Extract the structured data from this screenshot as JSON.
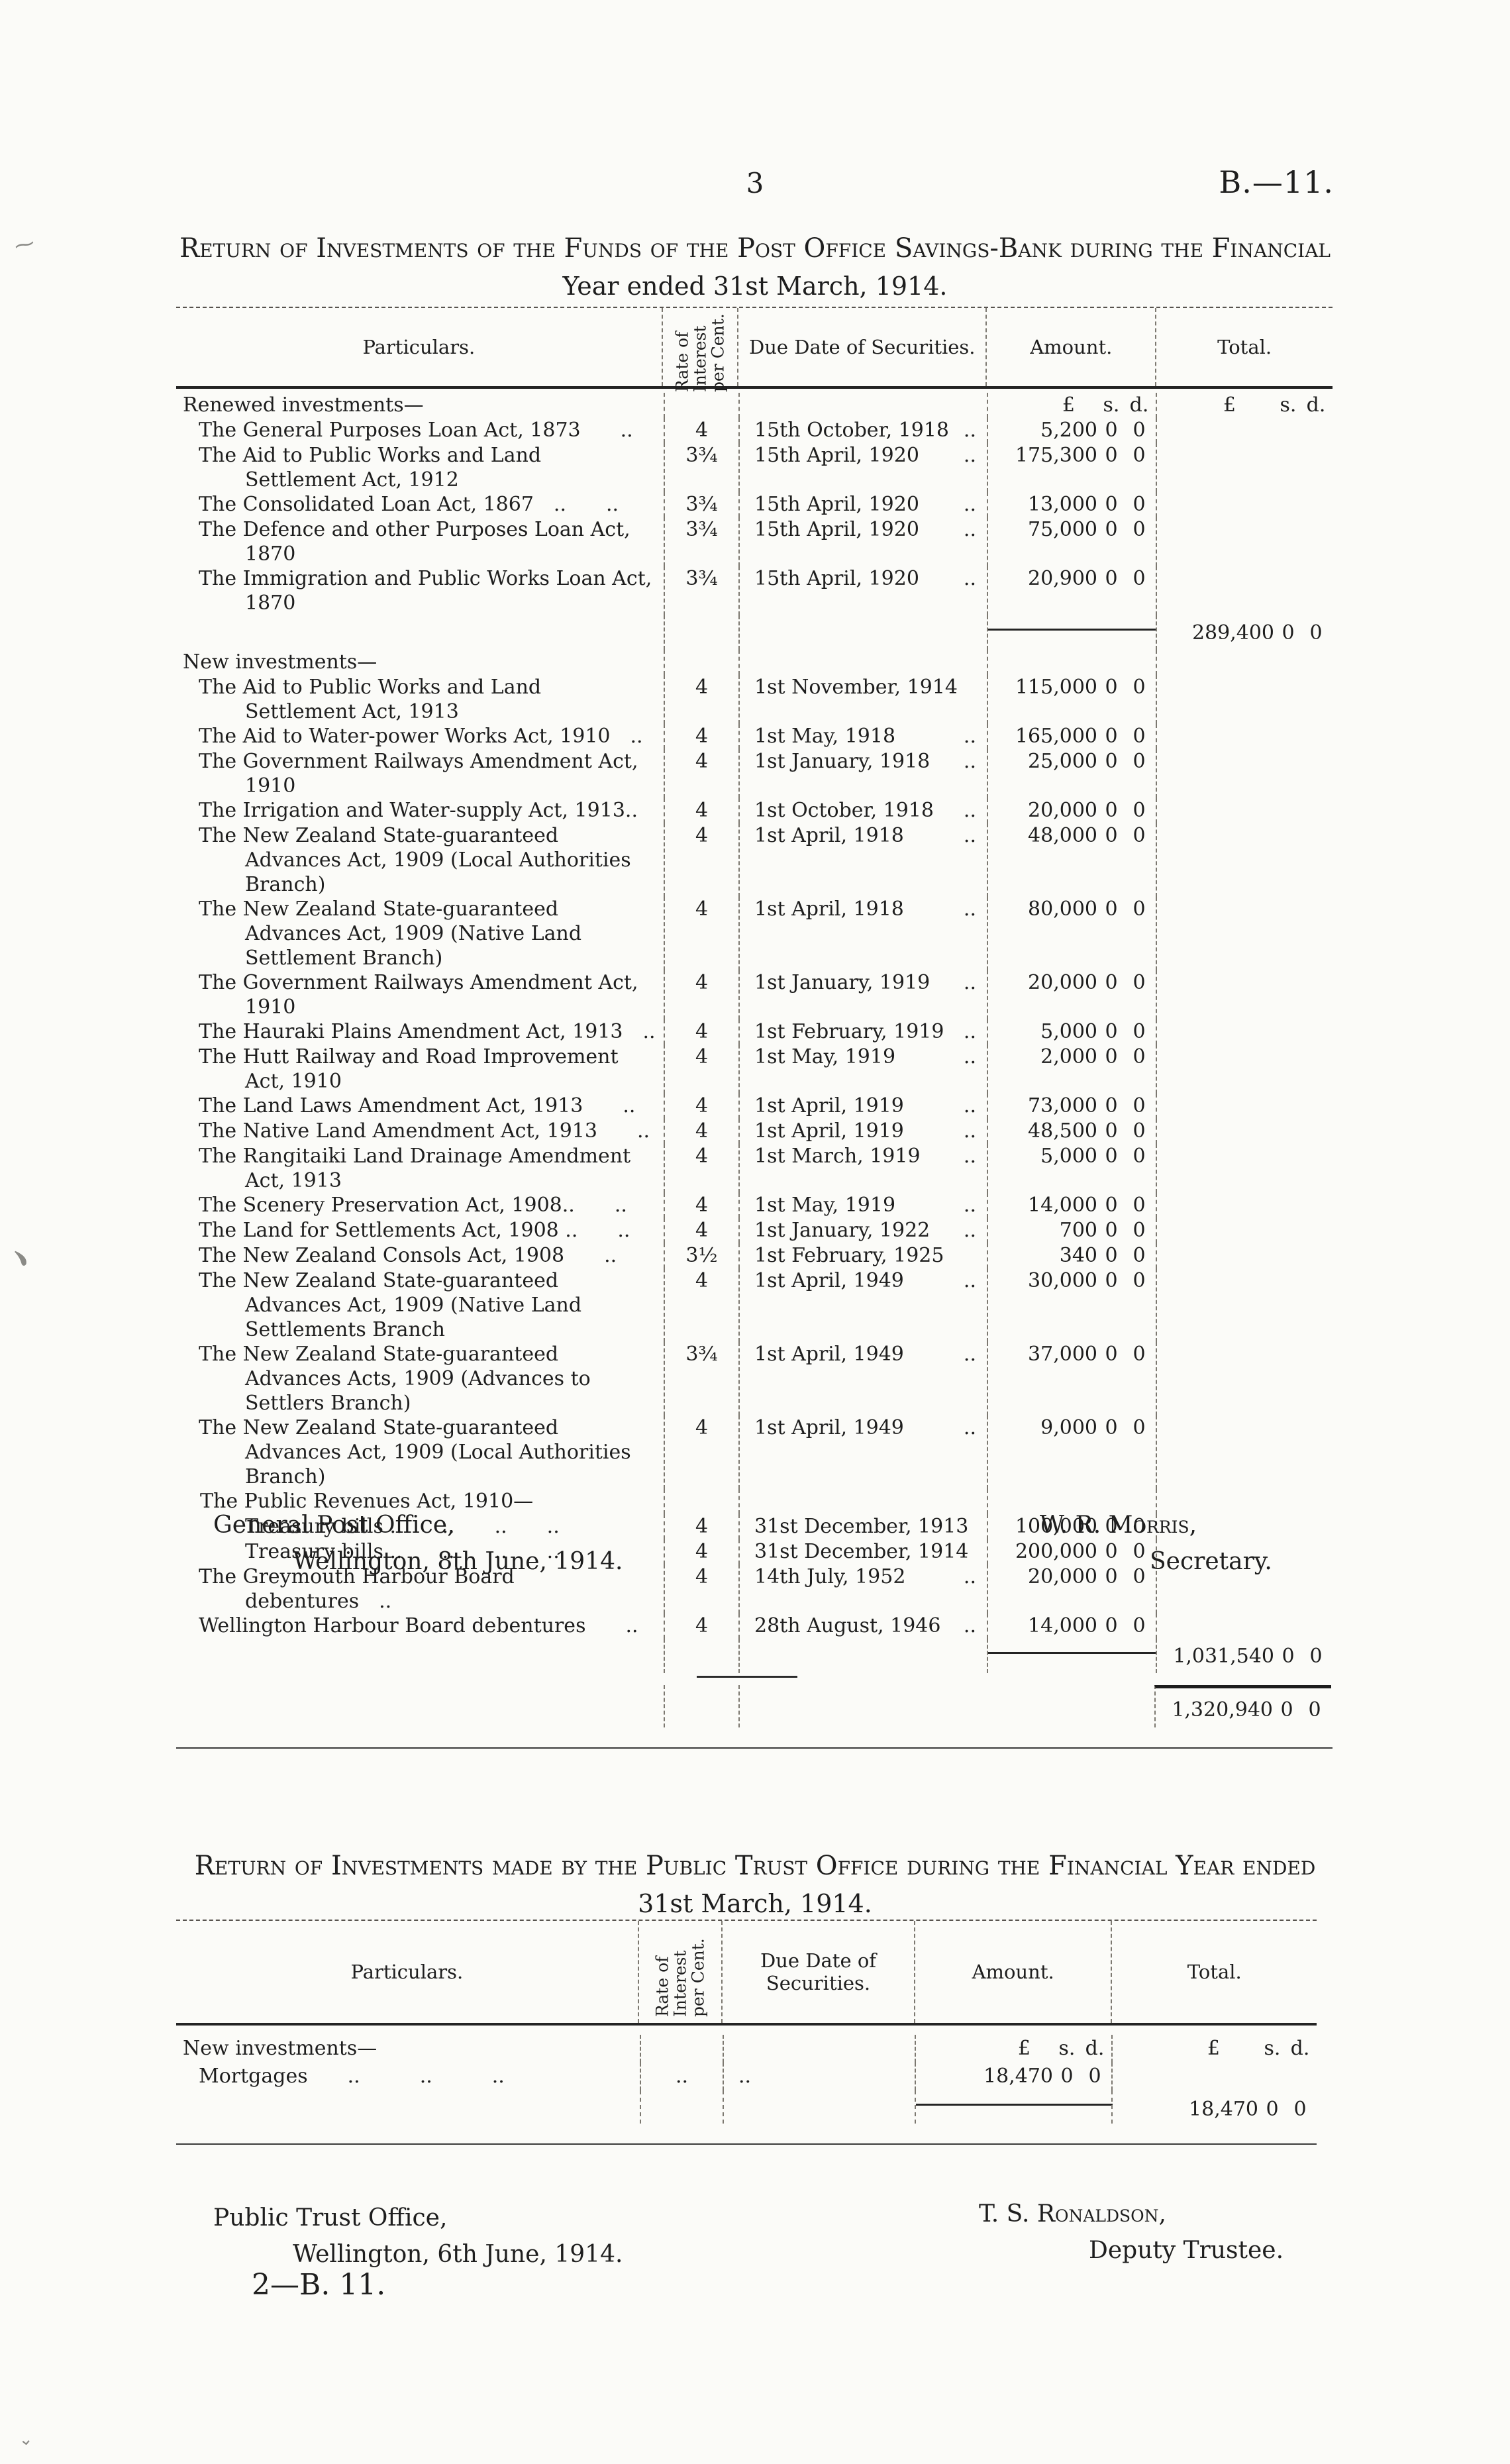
{
  "ink_color": "#1e1e1e",
  "paper_color": "#fbfbf8",
  "page": {
    "number": "3",
    "doc_ref": "B.—11.",
    "printer_mark": "2—B. 11."
  },
  "return1": {
    "title_line1": "Return of Investments of the Funds of the Post Office Savings-Bank during the Financial",
    "title_line2": "Year ended 31st March, 1914.",
    "header": {
      "particulars": "Particulars.",
      "rate": "Rate of Interest per Cent.",
      "due": "Due Date of Securities.",
      "amount": "Amount.",
      "total": "Total."
    },
    "rows": [
      {
        "type": "group",
        "particulars": "Renewed investments—",
        "amount": "£",
        "s": "s.",
        "d": "d.",
        "total": "£",
        "ts": "s.",
        "td": "d."
      },
      {
        "particulars": "The General Purposes Loan Act, 1873  ..",
        "rate": "4",
        "due": "15th October, 1918",
        "due_dots": "..",
        "amount": "5,200",
        "s": "0",
        "d": "0"
      },
      {
        "particulars": "The Aid to Public Works and Land Settlement Act, 1912",
        "rate": "3¾",
        "due": "15th April, 1920",
        "due_dots": "..",
        "amount": "175,300",
        "s": "0",
        "d": "0"
      },
      {
        "particulars": "The Consolidated Loan Act, 1867 ..  ..",
        "rate": "3¾",
        "due": "15th April, 1920",
        "due_dots": "..",
        "amount": "13,000",
        "s": "0",
        "d": "0"
      },
      {
        "particulars": "The Defence and other Purposes Loan Act, 1870",
        "rate": "3¾",
        "due": "15th April, 1920",
        "due_dots": "..",
        "amount": "75,000",
        "s": "0",
        "d": "0"
      },
      {
        "particulars": "The Immigration and Public Works Loan Act, 1870",
        "rate": "3¾",
        "due": "15th April, 1920",
        "due_dots": "..",
        "amount": "20,900",
        "s": "0",
        "d": "0"
      },
      {
        "type": "subtotal",
        "total": "289,400",
        "ts": "0",
        "td": "0"
      },
      {
        "type": "group",
        "particulars": "New investments—"
      },
      {
        "particulars": "The Aid to Public Works and Land Settlement Act, 1913",
        "rate": "4",
        "due": "1st November, 1914",
        "amount": "115,000",
        "s": "0",
        "d": "0"
      },
      {
        "particulars": "The Aid to Water-power Works Act, 1910 ..",
        "rate": "4",
        "due": "1st May, 1918",
        "due_dots": "..",
        "amount": "165,000",
        "s": "0",
        "d": "0"
      },
      {
        "particulars": "The Government Railways Amendment Act, 1910",
        "rate": "4",
        "due": "1st January, 1918",
        "due_dots": "..",
        "amount": "25,000",
        "s": "0",
        "d": "0"
      },
      {
        "particulars": "The Irrigation and Water-supply Act, 1913..",
        "rate": "4",
        "due": "1st October, 1918",
        "due_dots": "..",
        "amount": "20,000",
        "s": "0",
        "d": "0"
      },
      {
        "particulars": "The New Zealand State-guaranteed Advances Act, 1909 (Local Authorities Branch)",
        "rate": "4",
        "due": "1st April, 1918",
        "due_dots": "..",
        "amount": "48,000",
        "s": "0",
        "d": "0"
      },
      {
        "particulars": "The New Zealand State-guaranteed Advances Act, 1909 (Native Land Settlement Branch)",
        "rate": "4",
        "due": "1st April, 1918",
        "due_dots": "..",
        "amount": "80,000",
        "s": "0",
        "d": "0"
      },
      {
        "particulars": "The Government Railways Amendment Act, 1910",
        "rate": "4",
        "due": "1st January, 1919",
        "due_dots": "..",
        "amount": "20,000",
        "s": "0",
        "d": "0"
      },
      {
        "particulars": "The Hauraki Plains Amendment Act, 1913 ..",
        "rate": "4",
        "due": "1st February, 1919",
        "due_dots": "..",
        "amount": "5,000",
        "s": "0",
        "d": "0"
      },
      {
        "particulars": "The Hutt Railway and Road Improvement Act, 1910",
        "rate": "4",
        "due": "1st May, 1919",
        "due_dots": "..",
        "amount": "2,000",
        "s": "0",
        "d": "0"
      },
      {
        "particulars": "The Land Laws Amendment Act, 1913  ..",
        "rate": "4",
        "due": "1st April, 1919",
        "due_dots": "..",
        "amount": "73,000",
        "s": "0",
        "d": "0"
      },
      {
        "particulars": "The Native Land Amendment Act, 1913  ..",
        "rate": "4",
        "due": "1st April, 1919",
        "due_dots": "..",
        "amount": "48,500",
        "s": "0",
        "d": "0"
      },
      {
        "particulars": "The Rangitaiki Land Drainage Amendment Act, 1913",
        "rate": "4",
        "due": "1st March, 1919",
        "due_dots": "..",
        "amount": "5,000",
        "s": "0",
        "d": "0"
      },
      {
        "particulars": "The Scenery Preservation Act, 1908..  ..",
        "rate": "4",
        "due": "1st May, 1919",
        "due_dots": "..",
        "amount": "14,000",
        "s": "0",
        "d": "0"
      },
      {
        "particulars": "The Land for Settlements Act, 1908 ..  ..",
        "rate": "4",
        "due": "1st January, 1922",
        "due_dots": "..",
        "amount": "700",
        "s": "0",
        "d": "0"
      },
      {
        "particulars": "The New Zealand Consols Act, 1908  ..",
        "rate": "3½",
        "due": "1st February, 1925",
        "amount": "340",
        "s": "0",
        "d": "0"
      },
      {
        "particulars": "The New Zealand State-guaranteed Advances Act, 1909 (Native Land Settlements Branch",
        "rate": "4",
        "due": "1st April, 1949",
        "due_dots": "..",
        "amount": "30,000",
        "s": "0",
        "d": "0"
      },
      {
        "particulars": "The New Zealand State-guaranteed Advances Acts, 1909 (Advances to Settlers Branch)",
        "rate": "3¾",
        "due": "1st April, 1949",
        "due_dots": "..",
        "amount": "37,000",
        "s": "0",
        "d": "0"
      },
      {
        "particulars": "The New Zealand State-guaranteed Advances Act, 1909 (Local Authorities Branch)",
        "rate": "4",
        "due": "1st April, 1949",
        "due_dots": "..",
        "amount": "9,000",
        "s": "0",
        "d": "0"
      },
      {
        "type": "subhead",
        "particulars": "The Public Revenues Act, 1910—"
      },
      {
        "indent": 2,
        "particulars": "Treasury bills ..  ..  ..  ..",
        "rate": "4",
        "due": "31st December, 1913",
        "amount": "100,000",
        "s": "0",
        "d": "0"
      },
      {
        "indent": 2,
        "particulars": "Treasury bills ..  ..  ..  ..",
        "rate": "4",
        "due": "31st December, 1914",
        "amount": "200,000",
        "s": "0",
        "d": "0"
      },
      {
        "particulars": "The Greymouth Harbour Board debentures ..",
        "rate": "4",
        "due": "14th July, 1952",
        "due_dots": "..",
        "amount": "20,000",
        "s": "0",
        "d": "0"
      },
      {
        "particulars": "Wellington Harbour Board debentures  ..",
        "rate": "4",
        "due": "28th August, 1946",
        "due_dots": "..",
        "amount": "14,000",
        "s": "0",
        "d": "0"
      },
      {
        "type": "subtotal",
        "total": "1,031,540",
        "ts": "0",
        "td": "0"
      },
      {
        "type": "grand",
        "total": "1,320,940",
        "ts": "0",
        "td": "0"
      }
    ],
    "signoff": {
      "office": "General Post Office,",
      "place_date": "Wellington, 8th June, 1914.",
      "signatory": "W. R. Morris,",
      "signatory_title": "Secretary."
    }
  },
  "return2": {
    "title_line1": "Return of Investments made by the Public Trust Office during the Financial Year ended",
    "title_line2": "31st March, 1914.",
    "header": {
      "particulars": "Particulars.",
      "rate": "Rate of Interest per Cent.",
      "due": "Due Date of Securities.",
      "amount": "Amount.",
      "total": "Total."
    },
    "rows": [
      {
        "type": "group",
        "particulars": "New investments—",
        "amount": "£",
        "s": "s.",
        "d": "d.",
        "total": "£",
        "ts": "s.",
        "td": "d."
      },
      {
        "particulars": "Mortgages  ..   ..   ..",
        "rate": "..",
        "due": "..",
        "amount": "18,470",
        "s": "0",
        "d": "0"
      },
      {
        "type": "subtotal",
        "total": "18,470",
        "ts": "0",
        "td": "0"
      }
    ],
    "signoff": {
      "office": "Public Trust Office,",
      "place_date": "Wellington, 6th June, 1914.",
      "signatory": "T. S. Ronaldson,",
      "signatory_title": "Deputy Trustee."
    }
  }
}
